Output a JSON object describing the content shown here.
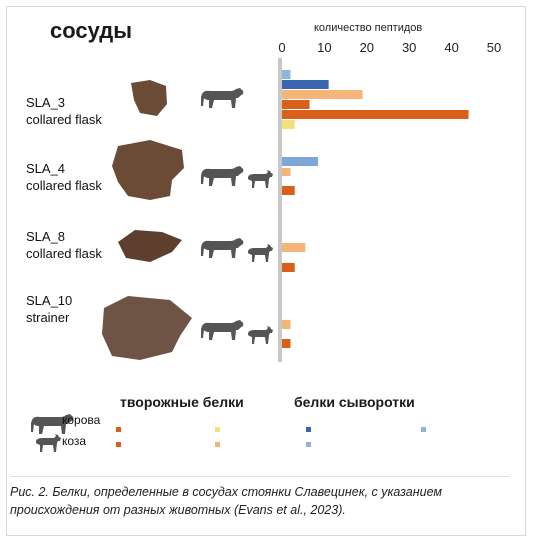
{
  "title": "сосуды",
  "caption": "Рис. 2. Белки, определенные в сосудах стоянки Славецинек, с указанием происхождения от разных животных (Evans et al., 2023).",
  "legend": {
    "casein_heading": "творожные белки",
    "whey_heading": "белки сыворотки",
    "cow_label": "корова",
    "goat_label": "коза"
  },
  "colors": {
    "casein_cow": "#d8601a",
    "casein_goat": "#f4b678",
    "whey_cow": "#3a66b0",
    "whey_goat": "#8cb6e0",
    "casein_goat_legend": "#f2e07a",
    "axis_line": "#c8c8c8",
    "sherd": "#6b4a36",
    "animal": "#555555"
  },
  "vessels": [
    {
      "name": "SLA_3",
      "type": "collared flask",
      "animals": [
        "cow-icon"
      ]
    },
    {
      "name": "SLA_4",
      "type": "collared flask",
      "animals": [
        "cow-icon",
        "goat-icon"
      ]
    },
    {
      "name": "SLA_8",
      "type": "collared flask",
      "animals": [
        "cow-icon",
        "goat-icon"
      ]
    },
    {
      "name": "SLA_10",
      "type": "strainer",
      "animals": [
        "cow-icon",
        "goat-icon"
      ]
    }
  ],
  "chart_data": {
    "type": "bar",
    "orientation": "horizontal",
    "xlabel": "количество пептидов",
    "xlim": [
      0,
      50
    ],
    "xticks": [
      0,
      10,
      20,
      30,
      40,
      50
    ],
    "grid": false,
    "categories": [
      "SLA_3 collared flask",
      "SLA_4 collared flask",
      "SLA_8 collared flask",
      "SLA_10 strainer"
    ],
    "bars": [
      {
        "vessel": "SLA_3",
        "group": "белки сыворотки",
        "animal": "коза",
        "color": "#8cb6e0",
        "value": 2
      },
      {
        "vessel": "SLA_3",
        "group": "белки сыворотки",
        "animal": "корова",
        "color": "#3a66b0",
        "value": 11
      },
      {
        "vessel": "SLA_3",
        "group": "творожные белки",
        "animal": "коза",
        "color": "#f4b678",
        "value": 19
      },
      {
        "vessel": "SLA_3",
        "group": "творожные белки",
        "animal": "корова",
        "color": "#d8601a",
        "value": 6.5
      },
      {
        "vessel": "SLA_3",
        "group": "творожные белки",
        "animal": "корова",
        "color": "#d8601a",
        "value": 44
      },
      {
        "vessel": "SLA_3",
        "group": "творожные белки",
        "animal": "коза",
        "color": "#f2e07a",
        "value": 3
      },
      {
        "vessel": "SLA_4",
        "group": "белки сыворотки",
        "animal": "корова",
        "color": "#7ea6d8",
        "value": 8.5
      },
      {
        "vessel": "SLA_4",
        "group": "творожные белки",
        "animal": "коза",
        "color": "#f4b678",
        "value": 2
      },
      {
        "vessel": "SLA_4",
        "group": "творожные белки",
        "animal": "корова",
        "color": "#d8601a",
        "value": 3
      },
      {
        "vessel": "SLA_8",
        "group": "творожные белки",
        "animal": "коза",
        "color": "#f4b678",
        "value": 5.5
      },
      {
        "vessel": "SLA_8",
        "group": "творожные белки",
        "animal": "корова",
        "color": "#d8601a",
        "value": 3
      },
      {
        "vessel": "SLA_10",
        "group": "творожные белки",
        "animal": "коза",
        "color": "#f4b678",
        "value": 2
      },
      {
        "vessel": "SLA_10",
        "group": "творожные белки",
        "animal": "корова",
        "color": "#d8601a",
        "value": 2
      }
    ]
  }
}
